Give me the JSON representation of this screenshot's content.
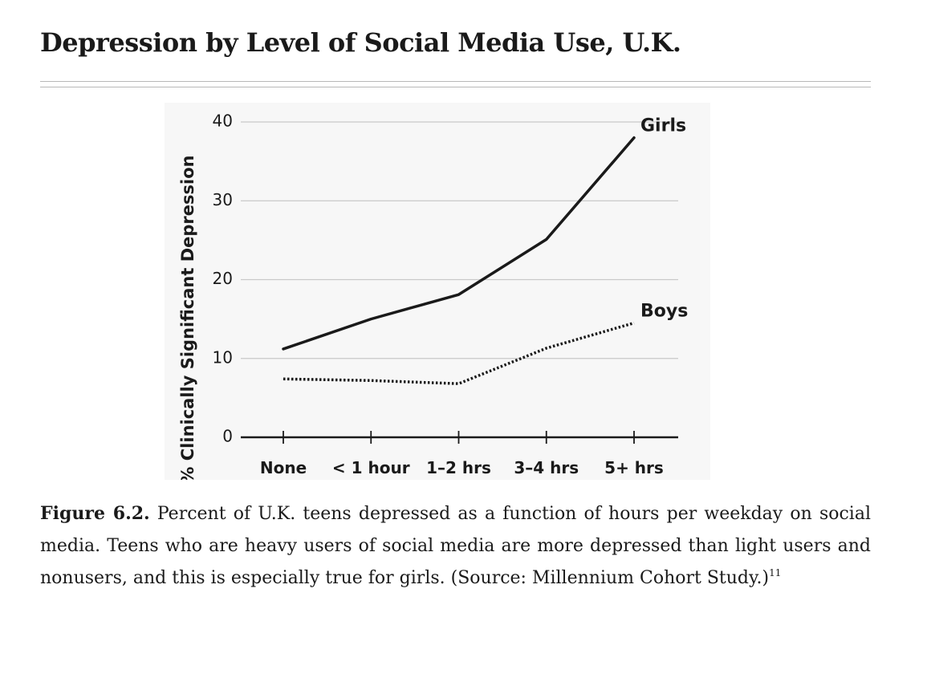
{
  "page_title": "Depression by Level of Social Media Use, U.K.",
  "caption": {
    "label": "Figure 6.2.",
    "text": " Percent of U.K. teens depressed as a function of hours per weekday on social media. Teens who are heavy users of social media are more depressed than light users and nonusers, and this is especially true for girls. (Source: Millennium Cohort Study.)",
    "footnote": "11"
  },
  "chart_data": {
    "type": "line",
    "title": "",
    "xlabel": "",
    "ylabel": "% Clinically Significant Depression",
    "categories": [
      "None",
      "< 1 hour",
      "1–2 hrs",
      "3–4 hrs",
      "5+ hrs"
    ],
    "yticks": [
      0,
      10,
      20,
      30,
      40
    ],
    "ylim": [
      0,
      40
    ],
    "grid": true,
    "legend": "direct labels at line ends",
    "series": [
      {
        "name": "Girls",
        "values": [
          11.2,
          15.0,
          18.1,
          25.1,
          38.0
        ],
        "style": "solid",
        "color": "#1a1a1a"
      },
      {
        "name": "Boys",
        "values": [
          7.4,
          7.2,
          6.8,
          11.3,
          14.5
        ],
        "style": "dotted",
        "color": "#1a1a1a"
      }
    ]
  }
}
